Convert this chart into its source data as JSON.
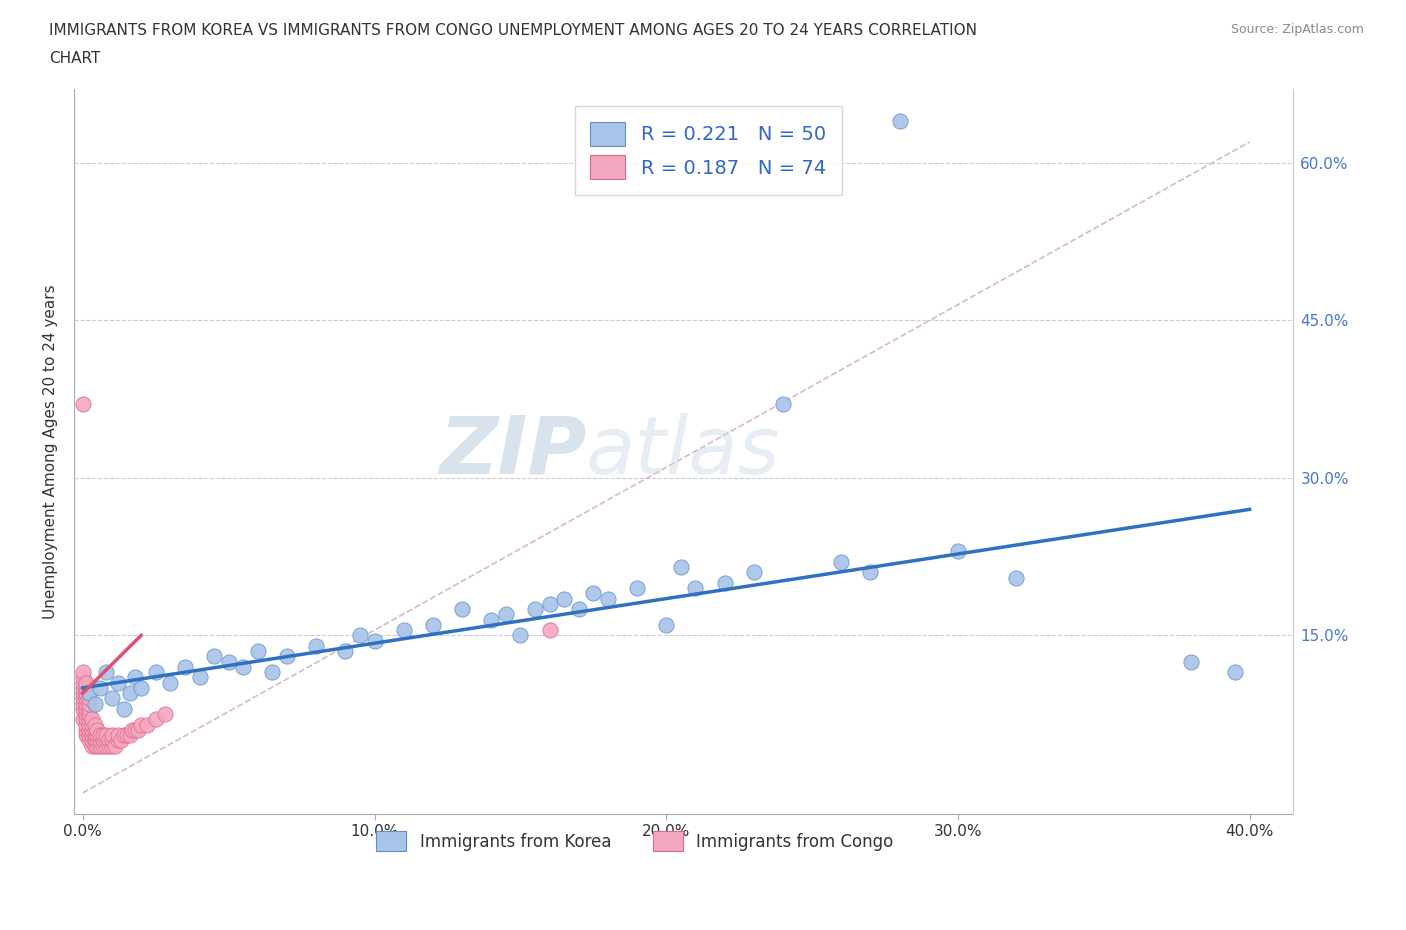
{
  "title_line1": "IMMIGRANTS FROM KOREA VS IMMIGRANTS FROM CONGO UNEMPLOYMENT AMONG AGES 20 TO 24 YEARS CORRELATION",
  "title_line2": "CHART",
  "source": "Source: ZipAtlas.com",
  "ylabel": "Unemployment Among Ages 20 to 24 years",
  "xlim": [
    -0.003,
    0.415
  ],
  "ylim": [
    -0.02,
    0.67
  ],
  "xticks": [
    0.0,
    0.1,
    0.2,
    0.3,
    0.4
  ],
  "xtick_labels": [
    "0.0%",
    "10.0%",
    "20.0%",
    "30.0%",
    "40.0%"
  ],
  "yticks": [
    0.0,
    0.15,
    0.3,
    0.45,
    0.6
  ],
  "ytick_labels_right": [
    "",
    "15.0%",
    "30.0%",
    "45.0%",
    "60.0%"
  ],
  "korea_fill": "#a8c4e8",
  "korea_edge": "#6090cc",
  "congo_fill": "#f4a8c0",
  "congo_edge": "#e06888",
  "korea_trend_color": "#3070c0",
  "congo_trend_color": "#e05070",
  "ref_line_color": "#d8b8c8",
  "grid_color": "#cccccc",
  "watermark": "ZIPatlas",
  "legend_r_korea": "R = 0.221",
  "legend_n_korea": "N = 50",
  "legend_r_congo": "R = 0.187",
  "legend_n_congo": "N = 74",
  "legend_label_korea": "Immigrants from Korea",
  "legend_label_congo": "Immigrants from Congo",
  "korea_x": [
    0.002,
    0.004,
    0.006,
    0.008,
    0.01,
    0.012,
    0.014,
    0.016,
    0.018,
    0.02,
    0.025,
    0.03,
    0.035,
    0.04,
    0.045,
    0.05,
    0.055,
    0.06,
    0.065,
    0.07,
    0.08,
    0.09,
    0.095,
    0.1,
    0.11,
    0.12,
    0.13,
    0.14,
    0.145,
    0.15,
    0.155,
    0.16,
    0.165,
    0.17,
    0.175,
    0.18,
    0.19,
    0.2,
    0.205,
    0.21,
    0.22,
    0.23,
    0.24,
    0.26,
    0.27,
    0.28,
    0.3,
    0.32,
    0.38,
    0.395
  ],
  "korea_y": [
    0.095,
    0.085,
    0.1,
    0.115,
    0.09,
    0.105,
    0.08,
    0.095,
    0.11,
    0.1,
    0.115,
    0.105,
    0.12,
    0.11,
    0.13,
    0.125,
    0.12,
    0.135,
    0.115,
    0.13,
    0.14,
    0.135,
    0.15,
    0.145,
    0.155,
    0.16,
    0.175,
    0.165,
    0.17,
    0.15,
    0.175,
    0.18,
    0.185,
    0.175,
    0.19,
    0.185,
    0.195,
    0.16,
    0.215,
    0.195,
    0.2,
    0.21,
    0.37,
    0.22,
    0.21,
    0.64,
    0.23,
    0.205,
    0.125,
    0.115
  ],
  "congo_x": [
    0.0,
    0.0,
    0.0,
    0.0,
    0.0,
    0.0,
    0.0,
    0.0,
    0.0,
    0.0,
    0.001,
    0.001,
    0.001,
    0.001,
    0.001,
    0.001,
    0.001,
    0.001,
    0.001,
    0.001,
    0.001,
    0.002,
    0.002,
    0.002,
    0.002,
    0.002,
    0.002,
    0.002,
    0.002,
    0.002,
    0.003,
    0.003,
    0.003,
    0.003,
    0.003,
    0.003,
    0.004,
    0.004,
    0.004,
    0.004,
    0.004,
    0.005,
    0.005,
    0.005,
    0.005,
    0.006,
    0.006,
    0.006,
    0.007,
    0.007,
    0.007,
    0.008,
    0.008,
    0.008,
    0.009,
    0.009,
    0.01,
    0.01,
    0.01,
    0.011,
    0.012,
    0.012,
    0.013,
    0.014,
    0.015,
    0.016,
    0.017,
    0.018,
    0.019,
    0.02,
    0.022,
    0.025,
    0.028,
    0.16
  ],
  "congo_y": [
    0.07,
    0.08,
    0.085,
    0.09,
    0.095,
    0.1,
    0.105,
    0.11,
    0.115,
    0.37,
    0.055,
    0.06,
    0.065,
    0.07,
    0.075,
    0.08,
    0.085,
    0.09,
    0.095,
    0.1,
    0.105,
    0.05,
    0.055,
    0.06,
    0.065,
    0.07,
    0.075,
    0.08,
    0.085,
    0.09,
    0.045,
    0.05,
    0.055,
    0.06,
    0.065,
    0.07,
    0.045,
    0.05,
    0.055,
    0.06,
    0.065,
    0.045,
    0.05,
    0.055,
    0.06,
    0.045,
    0.05,
    0.055,
    0.045,
    0.05,
    0.055,
    0.045,
    0.05,
    0.055,
    0.045,
    0.05,
    0.045,
    0.05,
    0.055,
    0.045,
    0.05,
    0.055,
    0.05,
    0.055,
    0.055,
    0.055,
    0.06,
    0.06,
    0.06,
    0.065,
    0.065,
    0.07,
    0.075,
    0.155
  ],
  "title_fontsize": 11,
  "axis_fontsize": 11,
  "right_tick_color": "#4477cc"
}
